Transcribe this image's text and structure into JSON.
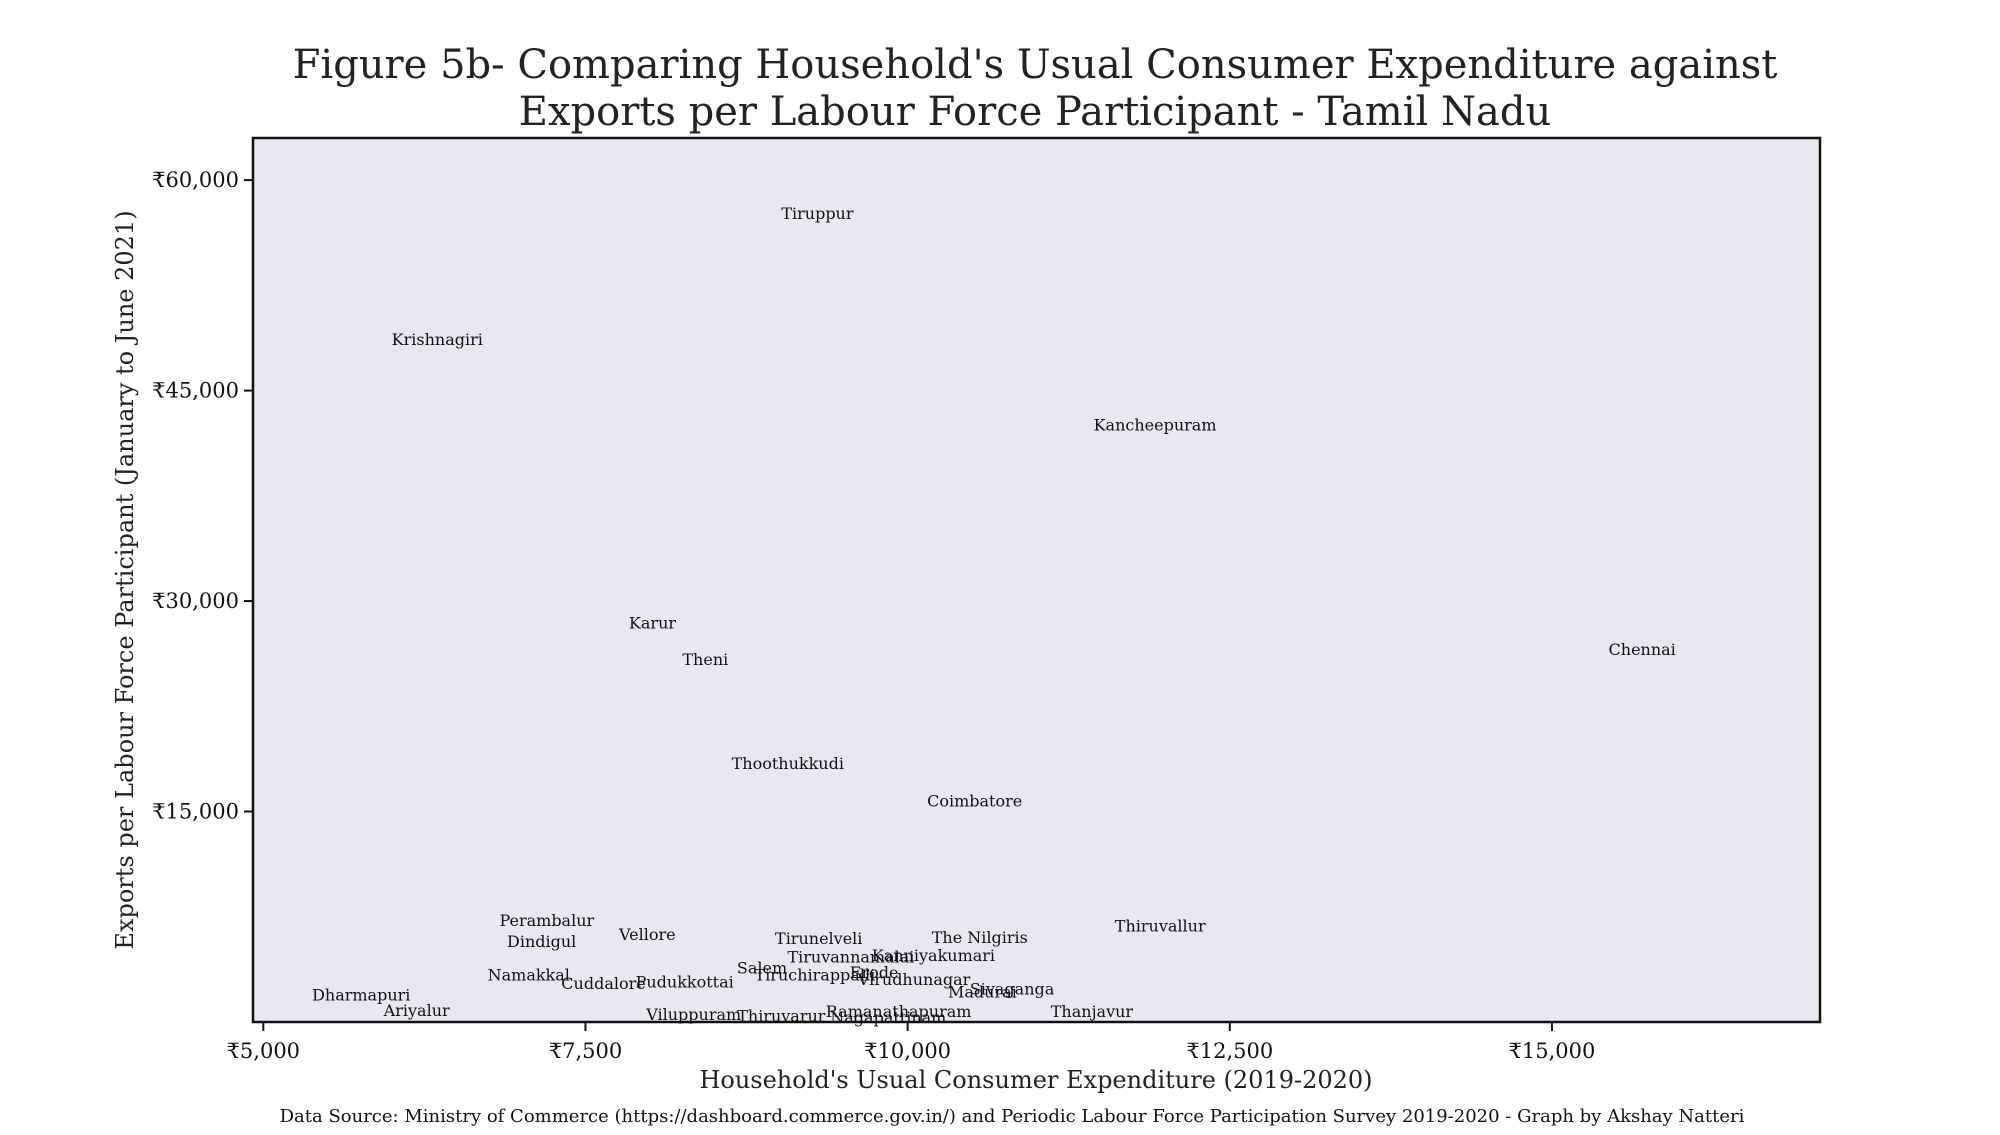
{
  "chart_data": {
    "type": "scatter",
    "title_lines": [
      "Figure 5b- Comparing Household's Usual Consumer Expenditure against",
      "Exports per Labour Force Participant  - Tamil Nadu"
    ],
    "xlabel": "Household's Usual Consumer Expenditure (2019-2020)",
    "ylabel": "Exports per Labour Force Participant (January to June 2021)",
    "xlim": [
      4920,
      17080
    ],
    "ylim": [
      0,
      63000
    ],
    "x_ticks": [
      5000,
      7500,
      10000,
      12500,
      15000
    ],
    "x_tick_labels": [
      "₹5,000",
      "₹7,500",
      "₹10,000",
      "₹12,500",
      "₹15,000"
    ],
    "y_ticks": [
      15000,
      30000,
      45000,
      60000
    ],
    "y_tick_labels": [
      "₹15,000",
      "₹30,000",
      "₹45,000",
      "₹60,000"
    ],
    "grid": false,
    "background_color": "#e8e8f2",
    "points": [
      {
        "label": "Tiruppur",
        "x": 9300,
        "y": 57600
      },
      {
        "label": "Krishnagiri",
        "x": 6350,
        "y": 48600
      },
      {
        "label": "Kancheepuram",
        "x": 11920,
        "y": 42500
      },
      {
        "label": "Chennai",
        "x": 15700,
        "y": 26500
      },
      {
        "label": "Karur",
        "x": 8020,
        "y": 28400
      },
      {
        "label": "Theni",
        "x": 8430,
        "y": 25800
      },
      {
        "label": "Thoothukkudi",
        "x": 9070,
        "y": 18400
      },
      {
        "label": "Coimbatore",
        "x": 10520,
        "y": 15700
      },
      {
        "label": "Thiruvallur",
        "x": 11960,
        "y": 6800
      },
      {
        "label": "Perambalur",
        "x": 7200,
        "y": 7200
      },
      {
        "label": "Vellore",
        "x": 7980,
        "y": 6200
      },
      {
        "label": "Dindigul",
        "x": 7160,
        "y": 5700
      },
      {
        "label": "Tirunelveli",
        "x": 9310,
        "y": 5900
      },
      {
        "label": "The Nilgiris",
        "x": 10560,
        "y": 6000
      },
      {
        "label": "Kanniyakumari",
        "x": 10200,
        "y": 4700
      },
      {
        "label": "Tiruvannamalai",
        "x": 9560,
        "y": 4600
      },
      {
        "label": "Salem",
        "x": 8870,
        "y": 3800
      },
      {
        "label": "Erode",
        "x": 9740,
        "y": 3500
      },
      {
        "label": "Tiruchirappalli",
        "x": 9280,
        "y": 3300
      },
      {
        "label": "Virudhunagar",
        "x": 10050,
        "y": 3000
      },
      {
        "label": "Namakkal",
        "x": 7060,
        "y": 3300
      },
      {
        "label": "Pudukkottai",
        "x": 8270,
        "y": 2800
      },
      {
        "label": "Cuddalore",
        "x": 7640,
        "y": 2700
      },
      {
        "label": "Sivaganga",
        "x": 10810,
        "y": 2300
      },
      {
        "label": "Madurai",
        "x": 10580,
        "y": 2100
      },
      {
        "label": "Dharmapuri",
        "x": 5760,
        "y": 1900
      },
      {
        "label": "Ariyalur",
        "x": 6190,
        "y": 800
      },
      {
        "label": "Thanjavur",
        "x": 11430,
        "y": 700
      },
      {
        "label": "Ramanathapuram",
        "x": 9930,
        "y": 700
      },
      {
        "label": "Viluppuram",
        "x": 8340,
        "y": 500
      },
      {
        "label": "Thiruvarur",
        "x": 9020,
        "y": 400
      },
      {
        "label": "Nagapattinam",
        "x": 9850,
        "y": 300
      }
    ],
    "source_note": "Data Source:  Ministry of Commerce (https://dashboard.commerce.gov.in/) and Periodic Labour Force Participation Survey 2019-2020 - Graph by Akshay Natteri"
  }
}
